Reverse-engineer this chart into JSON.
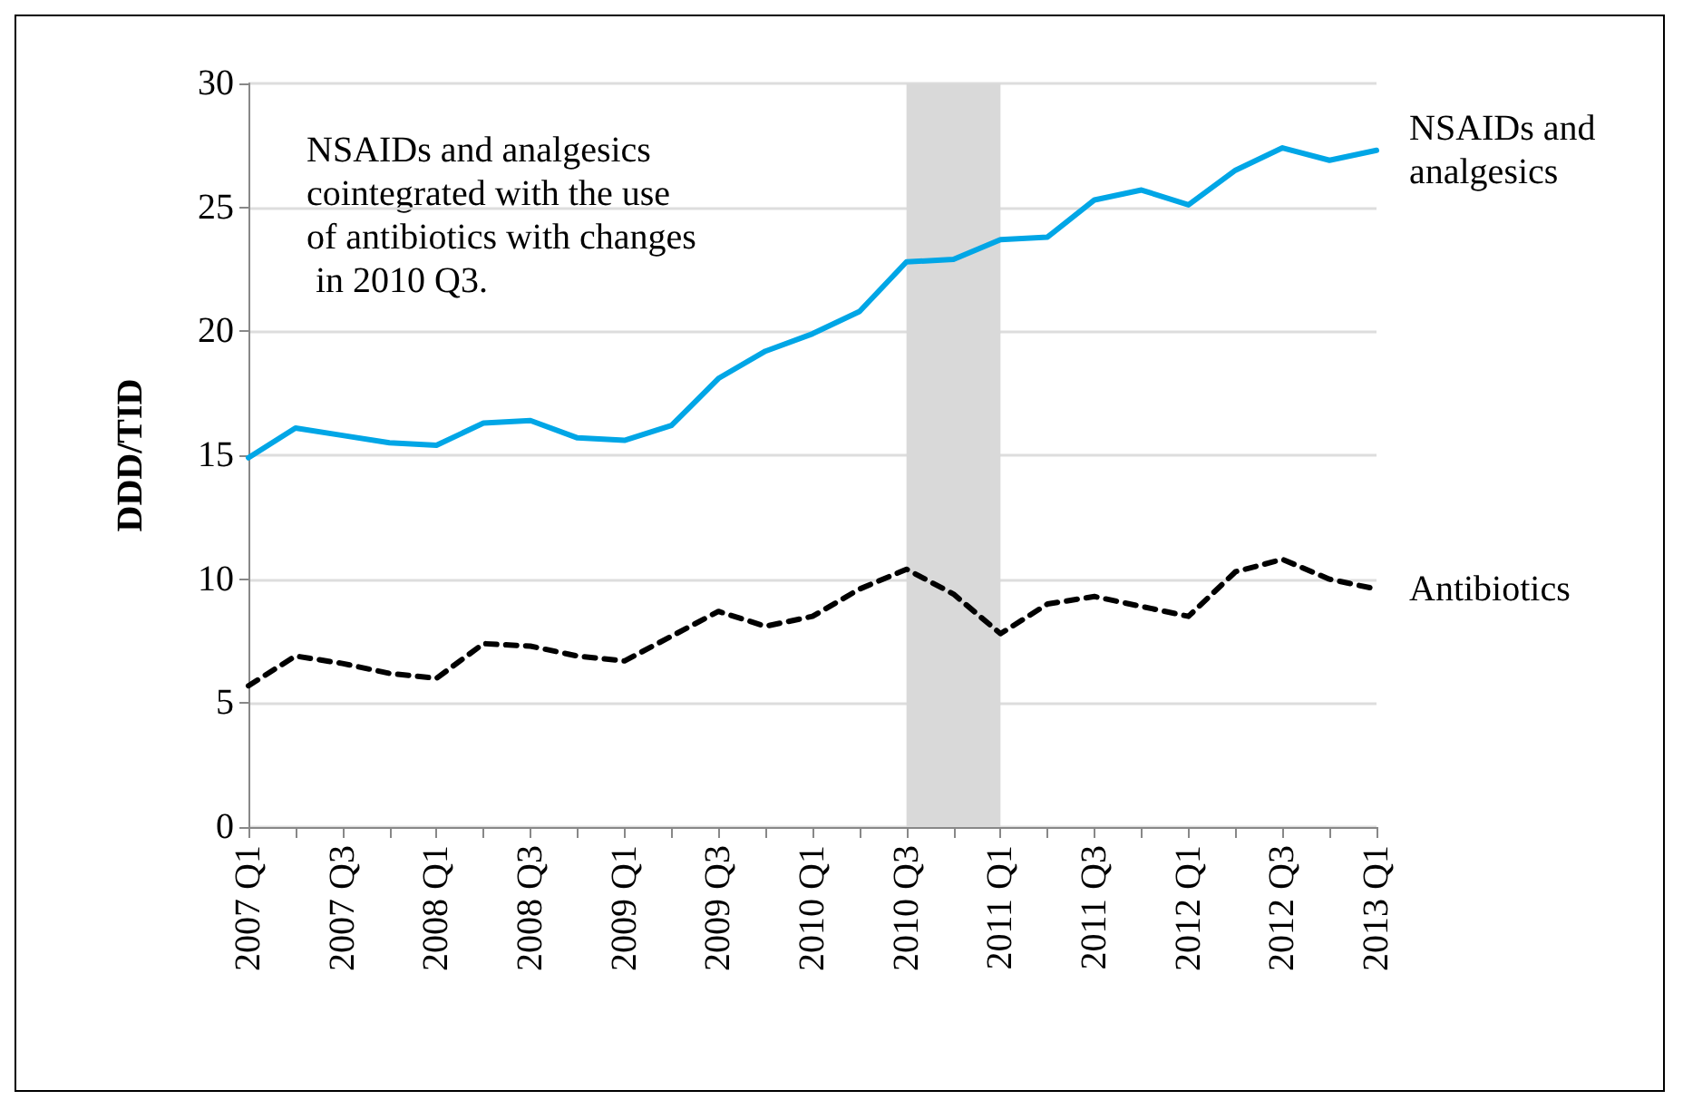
{
  "chart_data": {
    "type": "line",
    "ylabel": "DDD/TID",
    "categories": [
      "2007 Q1",
      null,
      "2007 Q3",
      null,
      "2008 Q1",
      null,
      "2008 Q3",
      null,
      "2009 Q1",
      null,
      "2009 Q3",
      null,
      "2010 Q1",
      null,
      "2010 Q3",
      null,
      "2011 Q1",
      null,
      "2011 Q3",
      null,
      "2012 Q1",
      null,
      "2012 Q3",
      null,
      "2013 Q1"
    ],
    "series": [
      {
        "name": "NSAIDs and analgesics",
        "color": "#00a6e6",
        "line_style": "solid",
        "values": [
          14.9,
          16.1,
          15.8,
          15.5,
          15.4,
          16.3,
          16.4,
          15.7,
          15.6,
          16.2,
          18.1,
          19.2,
          19.9,
          20.8,
          22.8,
          22.9,
          23.7,
          23.8,
          25.3,
          25.7,
          25.1,
          26.5,
          27.4,
          26.9,
          27.3
        ]
      },
      {
        "name": "Antibiotics",
        "color": "#000000",
        "line_style": "dashed",
        "values": [
          5.7,
          6.9,
          6.6,
          6.2,
          6.0,
          7.4,
          7.3,
          6.9,
          6.7,
          7.7,
          8.7,
          8.1,
          8.5,
          9.6,
          10.4,
          9.4,
          7.8,
          9.0,
          9.3,
          8.9,
          8.5,
          10.3,
          10.8,
          10.0,
          9.6
        ]
      }
    ],
    "ylim": [
      0,
      30
    ],
    "yticks": [
      0,
      5,
      10,
      15,
      20,
      25,
      30
    ],
    "bands": [
      {
        "axis": "x",
        "from": "2010 Q3",
        "to": "2011 Q1",
        "color": "#d9d9d9"
      }
    ],
    "annotations": [
      "NSAIDs and analgesics cointegrated with the use of antibiotics with changes in 2010 Q3."
    ],
    "grid": "y",
    "legend": false,
    "marker": "none"
  }
}
